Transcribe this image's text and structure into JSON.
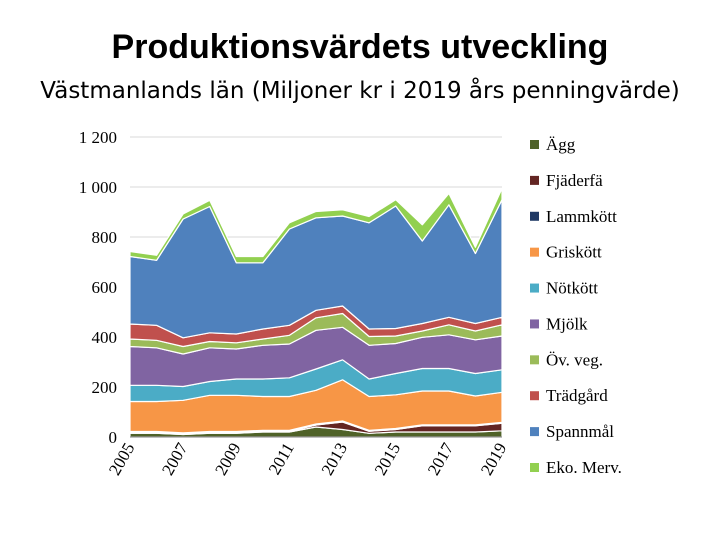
{
  "title": "Produktionsvärdets utveckling",
  "subtitle": "Västmanlands län (Miljoner kr i 2019 års penningvärde)",
  "chart_data": {
    "type": "area",
    "stacked": true,
    "x": [
      2005,
      2006,
      2007,
      2008,
      2009,
      2010,
      2011,
      2012,
      2013,
      2014,
      2015,
      2016,
      2017,
      2018,
      2019
    ],
    "xticks": [
      "2005",
      "2007",
      "2009",
      "2011",
      "2013",
      "2015",
      "2017",
      "2019"
    ],
    "yticks": [
      0,
      200,
      400,
      600,
      800,
      1000,
      1200
    ],
    "ytick_labels": [
      "0",
      "200",
      "400",
      "600",
      "800",
      "1 000",
      "1 200"
    ],
    "ylim": [
      0,
      1200
    ],
    "legend_position": "right",
    "series": [
      {
        "name": "Ägg",
        "color": "#4f6228",
        "values": [
          15,
          15,
          10,
          15,
          15,
          20,
          20,
          40,
          30,
          15,
          20,
          20,
          20,
          20,
          25
        ]
      },
      {
        "name": "Fjäderfä",
        "color": "#632523",
        "values": [
          3,
          3,
          3,
          3,
          3,
          3,
          3,
          8,
          30,
          8,
          10,
          25,
          25,
          25,
          30
        ]
      },
      {
        "name": "Lammkött",
        "color": "#1f3864",
        "values": [
          4,
          4,
          4,
          4,
          4,
          4,
          4,
          4,
          4,
          4,
          4,
          4,
          4,
          4,
          4
        ]
      },
      {
        "name": "Griskött",
        "color": "#f79646",
        "values": [
          120,
          120,
          130,
          145,
          145,
          135,
          135,
          135,
          165,
          135,
          135,
          135,
          135,
          115,
          120
        ]
      },
      {
        "name": "Nötkött",
        "color": "#4bacc6",
        "values": [
          65,
          65,
          55,
          55,
          65,
          70,
          75,
          85,
          80,
          70,
          85,
          90,
          90,
          90,
          90
        ]
      },
      {
        "name": "Mjölk",
        "color": "#8064a2",
        "values": [
          155,
          150,
          130,
          135,
          120,
          135,
          135,
          155,
          130,
          135,
          120,
          125,
          135,
          135,
          135
        ]
      },
      {
        "name": "Öv. veg.",
        "color": "#9bbb59",
        "values": [
          30,
          30,
          30,
          25,
          25,
          25,
          35,
          50,
          55,
          35,
          30,
          25,
          40,
          35,
          45
        ]
      },
      {
        "name": "Trädgård",
        "color": "#c0504d",
        "values": [
          60,
          60,
          35,
          35,
          35,
          40,
          40,
          30,
          30,
          30,
          30,
          30,
          30,
          30,
          30
        ]
      },
      {
        "name": "Spannmål",
        "color": "#4f81bd",
        "values": [
          270,
          260,
          475,
          505,
          285,
          265,
          385,
          370,
          360,
          425,
          490,
          330,
          450,
          280,
          470
        ]
      },
      {
        "name": "Eko. Merv.",
        "color": "#92d050",
        "values": [
          20,
          20,
          20,
          25,
          25,
          25,
          25,
          25,
          25,
          25,
          25,
          65,
          45,
          25,
          45
        ]
      }
    ]
  }
}
